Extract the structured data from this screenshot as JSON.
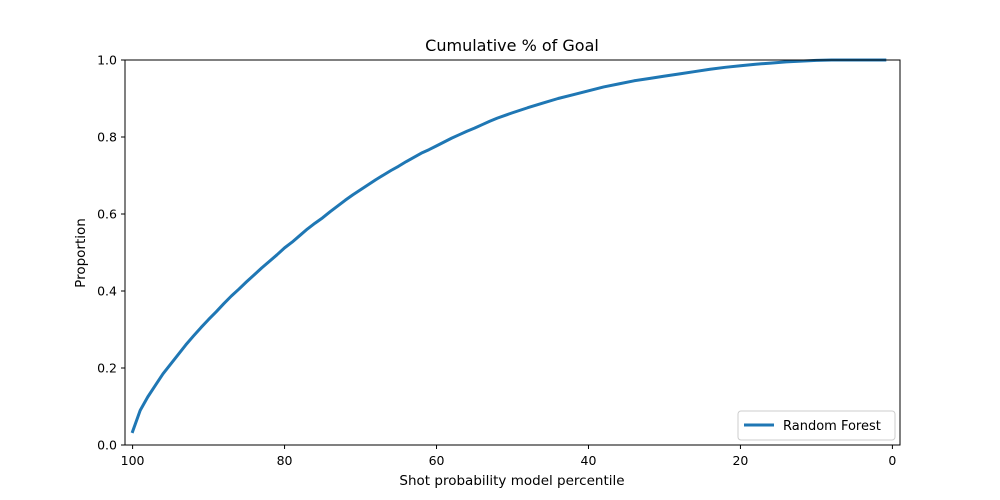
{
  "chart_data": {
    "type": "line",
    "title": "Cumulative % of Goal",
    "xlabel": "Shot probability model percentile",
    "ylabel": "Proportion",
    "xlim": [
      101,
      -1
    ],
    "ylim": [
      0,
      1
    ],
    "x_inverted": true,
    "xticks": [
      100,
      80,
      60,
      40,
      20,
      0
    ],
    "yticks": [
      0.0,
      0.2,
      0.4,
      0.6,
      0.8,
      1.0
    ],
    "ytick_labels": [
      "0.0",
      "0.2",
      "0.4",
      "0.6",
      "0.8",
      "1.0"
    ],
    "xtick_labels": [
      "100",
      "80",
      "60",
      "40",
      "20",
      "0"
    ],
    "grid": false,
    "legend": {
      "placement": "lower-right"
    },
    "series": [
      {
        "name": "Random Forest",
        "color": "#1f77b4",
        "x": [
          100,
          99,
          98,
          97,
          96,
          95,
          94,
          93,
          92,
          91,
          90,
          89,
          88,
          87,
          86,
          85,
          84,
          83,
          82,
          81,
          80,
          79,
          78,
          77,
          76,
          75,
          74,
          73,
          72,
          71,
          70,
          69,
          68,
          67,
          66,
          65,
          64,
          63,
          62,
          61,
          60,
          59,
          58,
          57,
          56,
          55,
          54,
          53,
          52,
          51,
          50,
          48,
          46,
          44,
          42,
          40,
          38,
          36,
          34,
          32,
          30,
          28,
          26,
          24,
          22,
          20,
          18,
          16,
          14,
          12,
          10,
          8,
          6,
          4,
          2,
          1
        ],
        "y": [
          0.035,
          0.09,
          0.125,
          0.155,
          0.185,
          0.21,
          0.235,
          0.26,
          0.283,
          0.305,
          0.326,
          0.346,
          0.367,
          0.387,
          0.405,
          0.424,
          0.442,
          0.46,
          0.477,
          0.494,
          0.512,
          0.527,
          0.544,
          0.561,
          0.576,
          0.59,
          0.606,
          0.621,
          0.636,
          0.65,
          0.663,
          0.676,
          0.689,
          0.701,
          0.713,
          0.724,
          0.736,
          0.747,
          0.758,
          0.767,
          0.777,
          0.787,
          0.797,
          0.806,
          0.815,
          0.823,
          0.832,
          0.841,
          0.849,
          0.856,
          0.863,
          0.876,
          0.888,
          0.9,
          0.91,
          0.92,
          0.93,
          0.938,
          0.946,
          0.952,
          0.958,
          0.964,
          0.97,
          0.976,
          0.981,
          0.985,
          0.989,
          0.992,
          0.995,
          0.997,
          0.999,
          1.0,
          1.0,
          1.0,
          1.0,
          1.0
        ]
      }
    ]
  }
}
